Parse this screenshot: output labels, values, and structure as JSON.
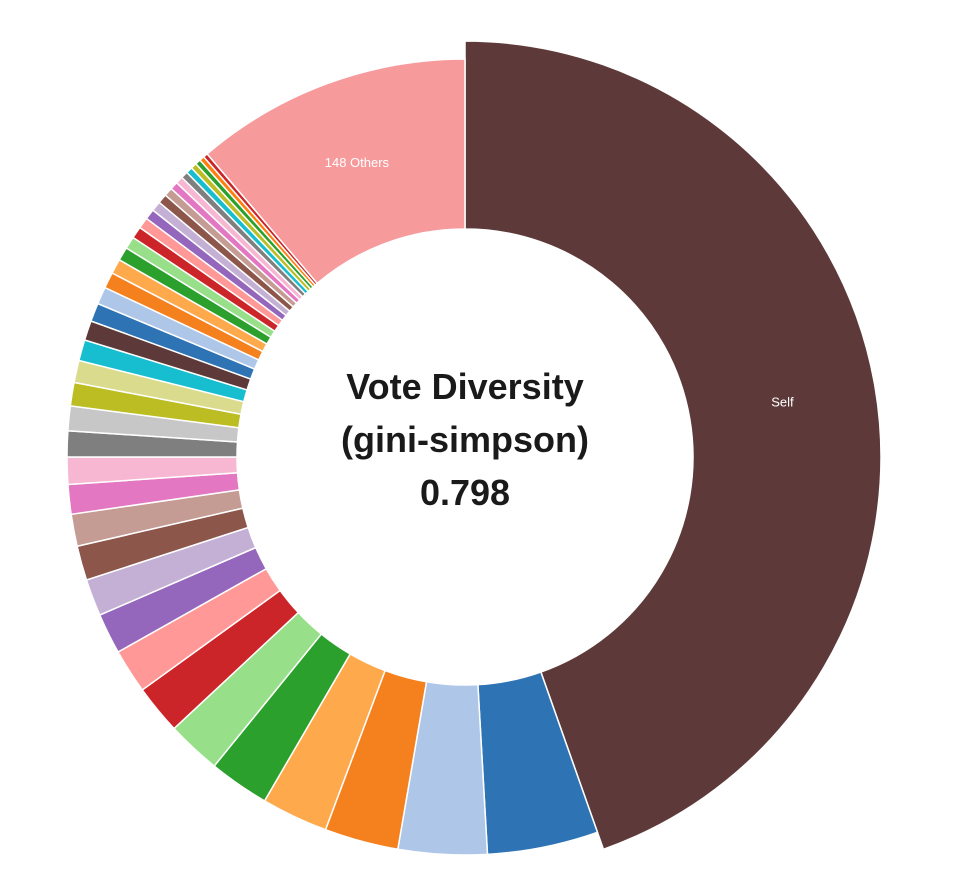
{
  "chart_data": {
    "type": "pie",
    "donut": true,
    "units": "percent",
    "background": "#ffffff",
    "title": "Vote Diversity (gini-simpson) 0.798",
    "center_label": {
      "line1": "Vote Diversity",
      "line2": "(gini-simpson)",
      "line3": "0.798"
    },
    "legend": "none",
    "label_color": "#ffffff",
    "segments": [
      {
        "label": "Self",
        "value": 44.6,
        "color": "#5D3A39",
        "emphasized": true
      },
      {
        "label": "",
        "value": 4.5,
        "color": "#2E74B5"
      },
      {
        "label": "",
        "value": 3.6,
        "color": "#AEC7E8"
      },
      {
        "label": "",
        "value": 3.0,
        "color": "#F5801E"
      },
      {
        "label": "",
        "value": 2.7,
        "color": "#FFA94D"
      },
      {
        "label": "",
        "value": 2.45,
        "color": "#2CA02C"
      },
      {
        "label": "",
        "value": 2.2,
        "color": "#98DF8A"
      },
      {
        "label": "",
        "value": 2.0,
        "color": "#CC2529"
      },
      {
        "label": "",
        "value": 1.8,
        "color": "#FF9896"
      },
      {
        "label": "",
        "value": 1.65,
        "color": "#9467BD"
      },
      {
        "label": "",
        "value": 1.5,
        "color": "#C5B0D5"
      },
      {
        "label": "",
        "value": 1.4,
        "color": "#8C564B"
      },
      {
        "label": "",
        "value": 1.3,
        "color": "#C49C94"
      },
      {
        "label": "",
        "value": 1.2,
        "color": "#E377C2"
      },
      {
        "label": "",
        "value": 1.1,
        "color": "#F7B6D2"
      },
      {
        "label": "",
        "value": 1.05,
        "color": "#7F7F7F"
      },
      {
        "label": "",
        "value": 1.0,
        "color": "#C7C7C7"
      },
      {
        "label": "",
        "value": 0.95,
        "color": "#BCBD22"
      },
      {
        "label": "",
        "value": 0.9,
        "color": "#DBDB8D"
      },
      {
        "label": "",
        "value": 0.85,
        "color": "#17BECF"
      },
      {
        "label": "",
        "value": 0.8,
        "color": "#5D3A39"
      },
      {
        "label": "",
        "value": 0.75,
        "color": "#2E74B5"
      },
      {
        "label": "",
        "value": 0.7,
        "color": "#AEC7E8"
      },
      {
        "label": "",
        "value": 0.65,
        "color": "#F5801E"
      },
      {
        "label": "",
        "value": 0.6,
        "color": "#FFA94D"
      },
      {
        "label": "",
        "value": 0.55,
        "color": "#2CA02C"
      },
      {
        "label": "",
        "value": 0.5,
        "color": "#98DF8A"
      },
      {
        "label": "",
        "value": 0.48,
        "color": "#CC2529"
      },
      {
        "label": "",
        "value": 0.45,
        "color": "#FF9896"
      },
      {
        "label": "",
        "value": 0.42,
        "color": "#9467BD"
      },
      {
        "label": "",
        "value": 0.4,
        "color": "#C5B0D5"
      },
      {
        "label": "",
        "value": 0.38,
        "color": "#8C564B"
      },
      {
        "label": "",
        "value": 0.35,
        "color": "#C49C94"
      },
      {
        "label": "",
        "value": 0.32,
        "color": "#E377C2"
      },
      {
        "label": "",
        "value": 0.3,
        "color": "#F7B6D2"
      },
      {
        "label": "",
        "value": 0.28,
        "color": "#7F7F7F"
      },
      {
        "label": "",
        "value": 0.26,
        "color": "#17BECF"
      },
      {
        "label": "",
        "value": 0.24,
        "color": "#BCBD22"
      },
      {
        "label": "",
        "value": 0.22,
        "color": "#2CA02C"
      },
      {
        "label": "",
        "value": 0.2,
        "color": "#FF7F0E"
      },
      {
        "label": "",
        "value": 0.18,
        "color": "#CC2529"
      },
      {
        "label": "148 Others",
        "value": 11.22,
        "color": "#F79A9C"
      }
    ]
  }
}
